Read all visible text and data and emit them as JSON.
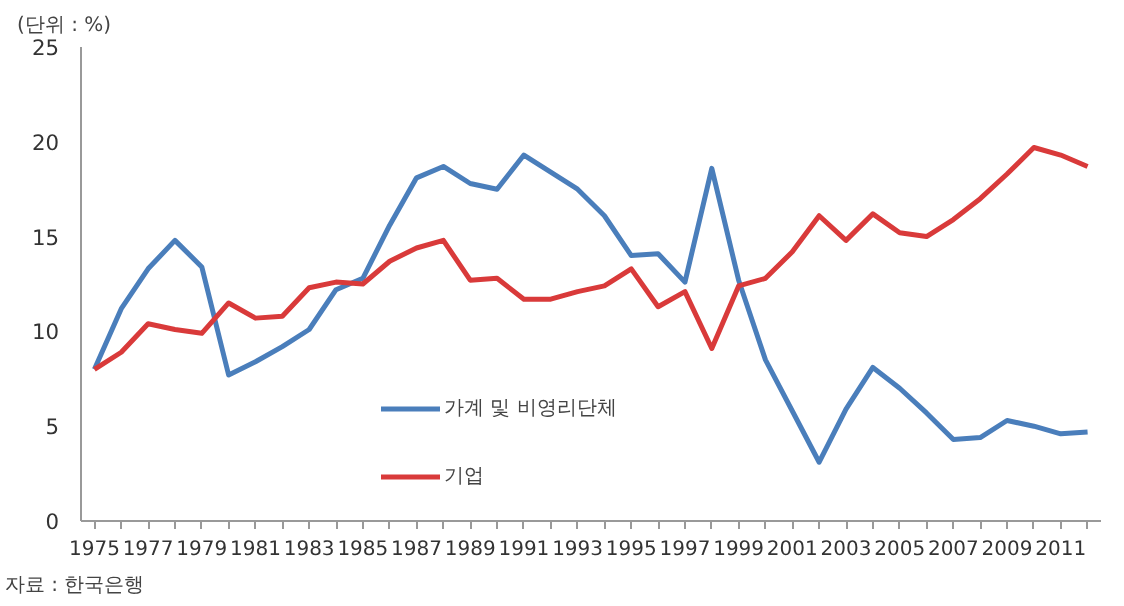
{
  "chart_data": {
    "type": "line",
    "ylabel": "(단위 : %)",
    "annotations": [
      "자료 : 한국은행"
    ],
    "x": [
      1975,
      1976,
      1977,
      1978,
      1979,
      1980,
      1981,
      1982,
      1983,
      1984,
      1985,
      1986,
      1987,
      1988,
      1989,
      1990,
      1991,
      1992,
      1993,
      1994,
      1995,
      1996,
      1997,
      1998,
      1999,
      2000,
      2001,
      2002,
      2003,
      2004,
      2005,
      2006,
      2007,
      2008,
      2009,
      2010,
      2011,
      2012
    ],
    "series": [
      {
        "name": "가계 및 비영리단체",
        "color": "#4a7ebb",
        "values": [
          8.0,
          11.2,
          13.3,
          14.8,
          13.4,
          7.7,
          8.4,
          9.2,
          10.1,
          12.2,
          12.8,
          15.6,
          18.1,
          18.7,
          17.8,
          17.5,
          19.3,
          18.4,
          17.5,
          16.1,
          14.0,
          14.1,
          12.6,
          18.6,
          12.7,
          8.5,
          5.8,
          3.1,
          5.9,
          8.1,
          7.0,
          5.7,
          4.3,
          4.4,
          5.3,
          5.0,
          4.6,
          4.7
        ]
      },
      {
        "name": "기업",
        "color": "#d93a3a",
        "values": [
          8.0,
          8.9,
          10.4,
          10.1,
          9.9,
          11.5,
          10.7,
          10.8,
          12.3,
          12.6,
          12.5,
          13.7,
          14.4,
          14.8,
          12.7,
          12.8,
          11.7,
          11.7,
          12.1,
          12.4,
          13.3,
          11.3,
          12.1,
          9.1,
          12.4,
          12.8,
          14.2,
          16.1,
          14.8,
          16.2,
          15.2,
          15.0,
          15.9,
          17.0,
          18.3,
          19.7,
          19.3,
          18.7
        ]
      }
    ],
    "xlim": [
      1974.5,
      2012.5
    ],
    "xticks": [
      1975,
      {
        "value": 1976,
        "label": null
      },
      1977,
      {
        "value": 1978,
        "label": null
      },
      1979,
      {
        "value": 1980,
        "label": null
      },
      1981,
      {
        "value": 1982,
        "label": null
      },
      1983,
      {
        "value": 1984,
        "label": null
      },
      1985,
      {
        "value": 1986,
        "label": null
      },
      1987,
      {
        "value": 1988,
        "label": null
      },
      1989,
      {
        "value": 1990,
        "label": null
      },
      1991,
      {
        "value": 1992,
        "label": null
      },
      1993,
      {
        "value": 1994,
        "label": null
      },
      1995,
      {
        "value": 1996,
        "label": null
      },
      1997,
      {
        "value": 1998,
        "label": null
      },
      1999,
      {
        "value": 2000,
        "label": null
      },
      2001,
      {
        "value": 2002,
        "label": null
      },
      2003,
      {
        "value": 2004,
        "label": null
      },
      2005,
      {
        "value": 2006,
        "label": null
      },
      2007,
      {
        "value": 2008,
        "label": null
      },
      2009,
      {
        "value": 2010,
        "label": null
      },
      2011,
      {
        "value": 2012,
        "label": null
      }
    ],
    "ylim": [
      0,
      25
    ],
    "yticks": [
      0,
      5,
      10,
      15,
      20,
      25
    ],
    "grid": false,
    "legend": "bottom",
    "marker": "none",
    "line_style": "solid"
  }
}
